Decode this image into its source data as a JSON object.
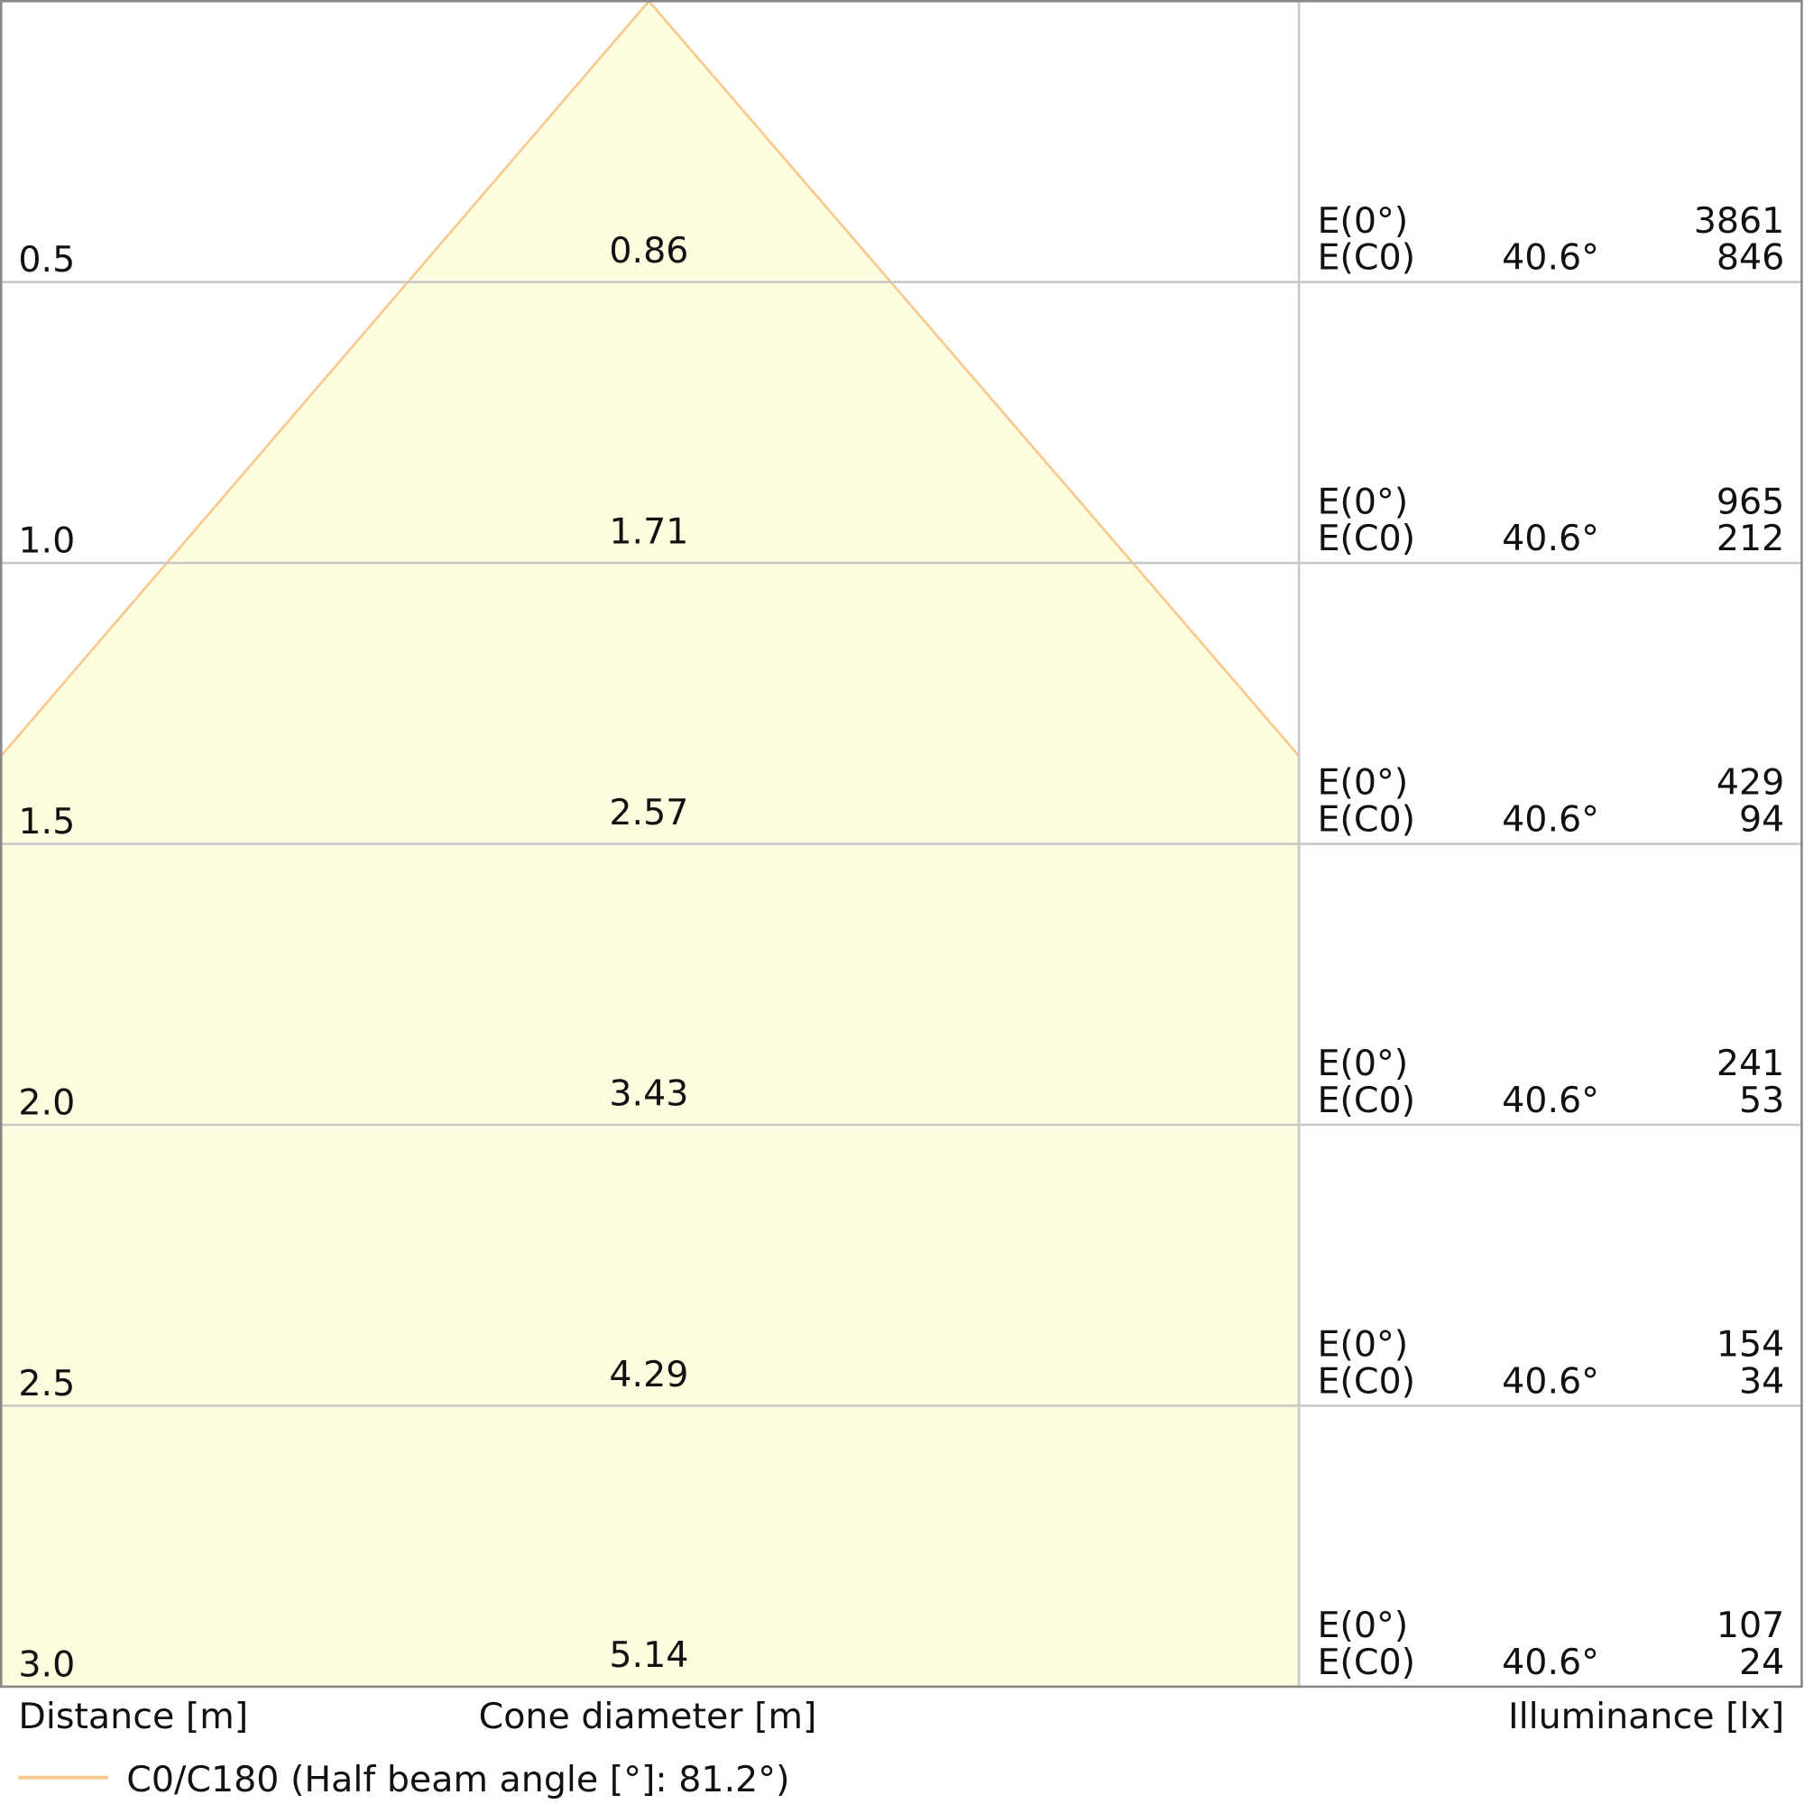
{
  "chart_data": {
    "type": "cone-diagram",
    "xlabel_distance": "Distance [m]",
    "xlabel_cone": "Cone diameter [m]",
    "xlabel_illuminance": "Illuminance [lx]",
    "legend": "C0/C180 (Half beam angle [°]: 81.2°)",
    "legend_placement": "bottom-left",
    "label_e0": "E(0°)",
    "label_ec0": "E(C0)",
    "rows": [
      {
        "distance": "0.5",
        "diameter": "0.86",
        "angle": "40.6°",
        "e0": "3861",
        "ec0": "846"
      },
      {
        "distance": "1.0",
        "diameter": "1.71",
        "angle": "40.6°",
        "e0": "965",
        "ec0": "212"
      },
      {
        "distance": "1.5",
        "diameter": "2.57",
        "angle": "40.6°",
        "e0": "429",
        "ec0": "94"
      },
      {
        "distance": "2.0",
        "diameter": "3.43",
        "angle": "40.6°",
        "e0": "241",
        "ec0": "53"
      },
      {
        "distance": "2.5",
        "diameter": "4.29",
        "angle": "40.6°",
        "e0": "154",
        "ec0": "34"
      },
      {
        "distance": "3.0",
        "diameter": "5.14",
        "angle": "40.6°",
        "e0": "107",
        "ec0": "24"
      }
    ],
    "colors": {
      "cone_fill": "#fefde0",
      "cone_stroke": "#f8c88a",
      "grid": "#c8c8c8",
      "border": "#888888"
    }
  }
}
